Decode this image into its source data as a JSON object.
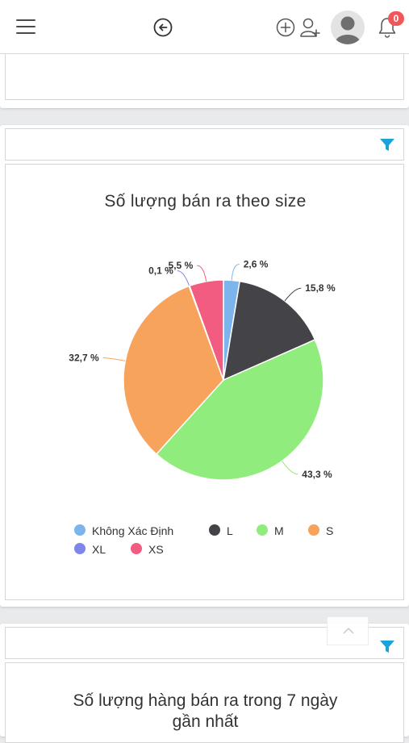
{
  "header": {
    "notification_count": "0",
    "icons": [
      "menu-icon",
      "back-icon",
      "add-circle-icon",
      "add-user-icon",
      "avatar",
      "bell-icon"
    ]
  },
  "colors": {
    "accent": "#1aa3d9",
    "badge": "#f0575a"
  },
  "panels": [
    {
      "chart_title": "Số lượng bán ra theo size",
      "chart_data": {
        "type": "pie",
        "title": "Số lượng bán ra theo size",
        "categories": [
          "Không Xác Định",
          "L",
          "M",
          "S",
          "XL",
          "XS"
        ],
        "values": [
          2.6,
          15.8,
          43.3,
          32.7,
          0.1,
          5.5
        ],
        "labels": [
          "2,6 %",
          "15,8 %",
          "43,3 %",
          "32,7 %",
          "0,1 %",
          "5,5 %"
        ],
        "colors": [
          "#7cb5ec",
          "#434348",
          "#90ed7d",
          "#f7a35c",
          "#8085e9",
          "#f15c80"
        ],
        "legend_position": "bottom"
      }
    },
    {
      "chart_title": "Số lượng hàng bán ra trong 7 ngày gần nhất"
    }
  ]
}
